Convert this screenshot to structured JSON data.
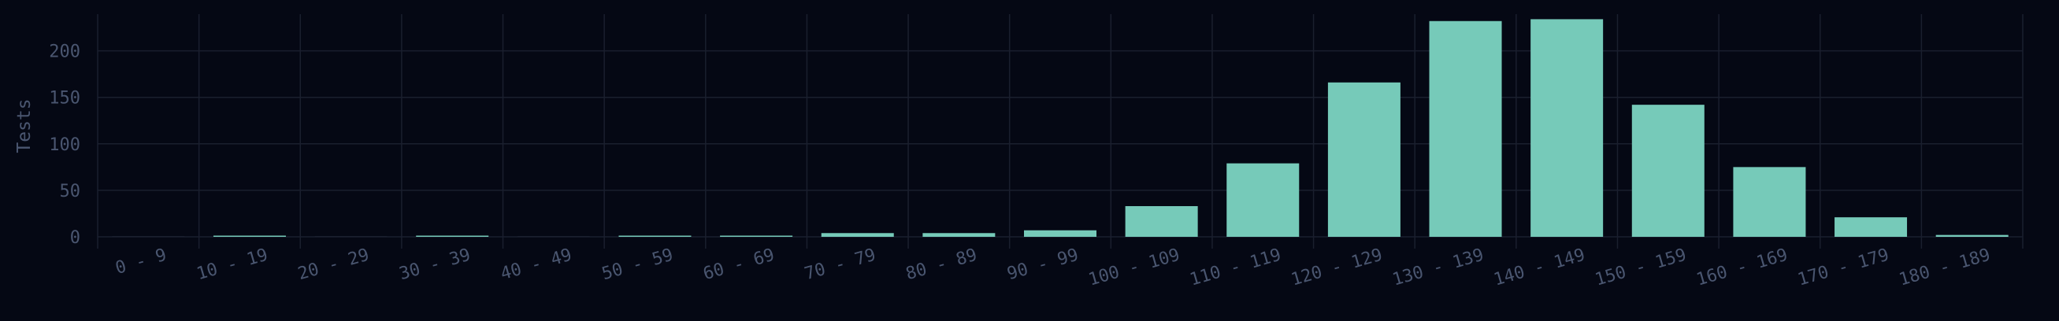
{
  "chart_data": {
    "type": "bar",
    "title": "",
    "xlabel": "",
    "ylabel": "Tests",
    "categories": [
      "0 - 9",
      "10 - 19",
      "20 - 29",
      "30 - 39",
      "40 - 49",
      "50 - 59",
      "60 - 69",
      "70 - 79",
      "80 - 89",
      "90 - 99",
      "100 - 109",
      "110 - 119",
      "120 - 129",
      "130 - 139",
      "140 - 149",
      "150 - 159",
      "160 - 169",
      "170 - 179",
      "180 - 189"
    ],
    "values": [
      0,
      1,
      0,
      1,
      0,
      1,
      1,
      4,
      4,
      7,
      33,
      79,
      166,
      232,
      234,
      142,
      75,
      21,
      2
    ],
    "ylim": [
      0,
      240
    ],
    "yticks": [
      0,
      50,
      100,
      150,
      200
    ],
    "grid": true,
    "legend": "none"
  },
  "colors": {
    "background": "#050814",
    "bar": "#76cab9",
    "grid": "#1a1f2e",
    "text": "#4a5670"
  }
}
